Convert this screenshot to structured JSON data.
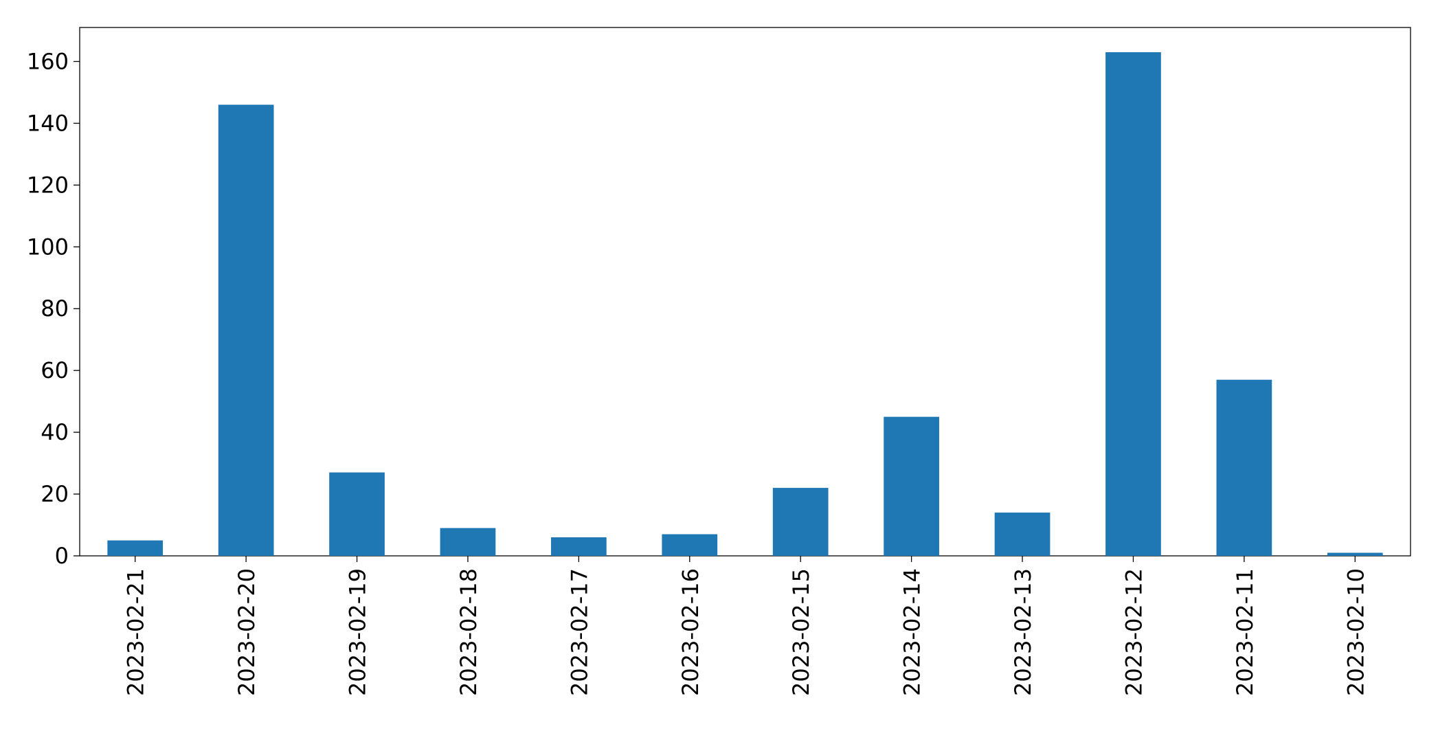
{
  "chart_data": {
    "type": "bar",
    "categories": [
      "2023-02-21",
      "2023-02-20",
      "2023-02-19",
      "2023-02-18",
      "2023-02-17",
      "2023-02-16",
      "2023-02-15",
      "2023-02-14",
      "2023-02-13",
      "2023-02-12",
      "2023-02-11",
      "2023-02-10"
    ],
    "values": [
      5,
      146,
      27,
      9,
      6,
      7,
      22,
      45,
      14,
      163,
      57,
      1
    ],
    "color": "#1f77b4",
    "ylim": [
      0,
      171
    ],
    "yticks": [
      0,
      20,
      40,
      60,
      80,
      100,
      120,
      140,
      160
    ],
    "grid": false
  }
}
